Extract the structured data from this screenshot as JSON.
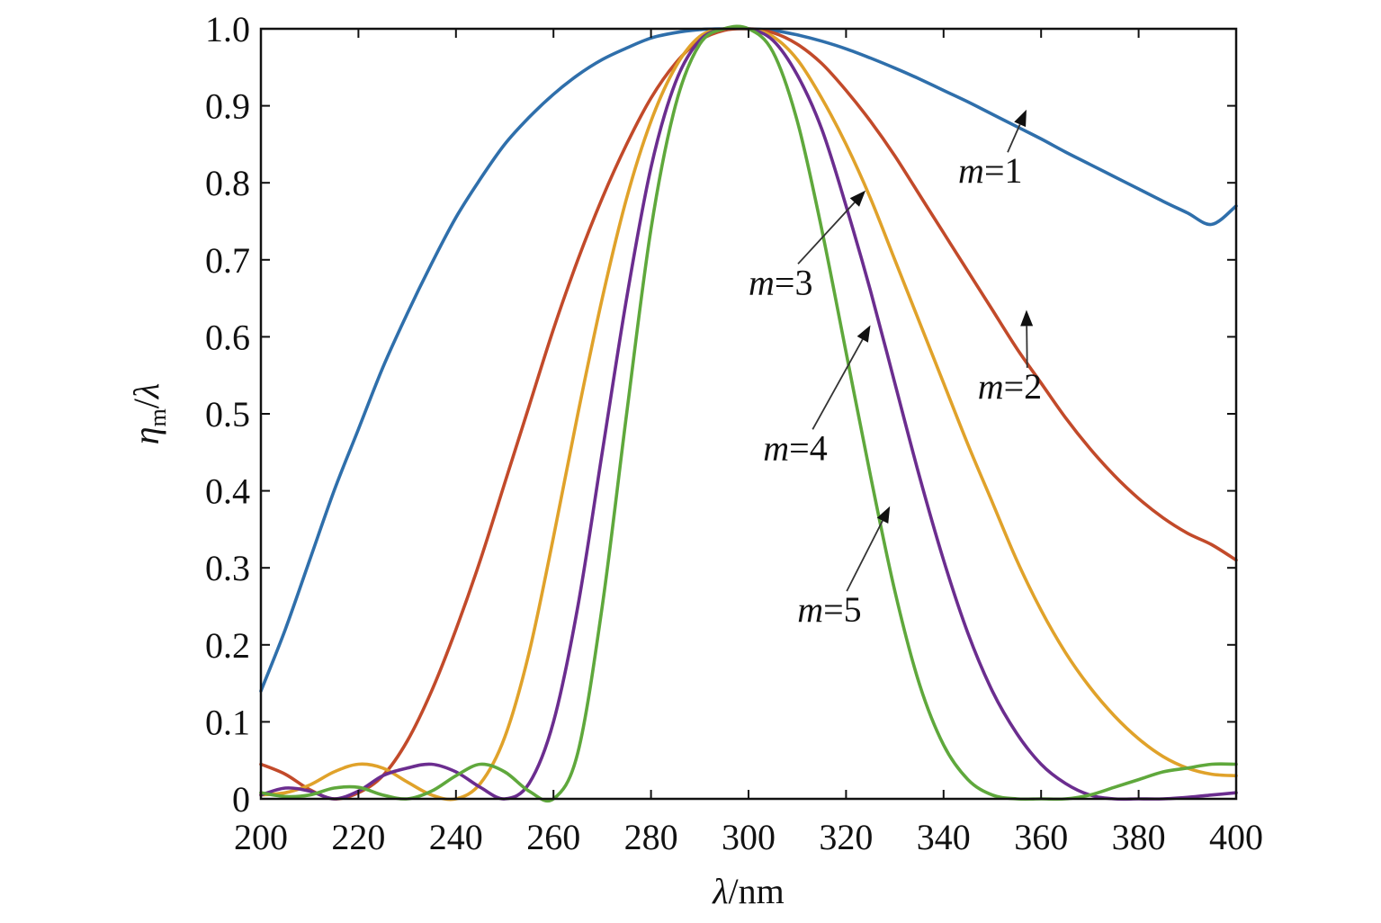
{
  "chart_data": {
    "type": "line",
    "title": "",
    "xlabel": {
      "symbol": "λ",
      "unit": "/nm"
    },
    "ylabel": {
      "symbol": "η",
      "sub": "m",
      "rest": "/λ"
    },
    "xlim": [
      200,
      400
    ],
    "ylim": [
      0,
      1.0
    ],
    "x_ticks": [
      "200",
      "220",
      "240",
      "260",
      "280",
      "300",
      "320",
      "340",
      "360",
      "380",
      "400"
    ],
    "y_ticks": [
      "0",
      "0.1",
      "0.2",
      "0.3",
      "0.4",
      "0.5",
      "0.6",
      "0.7",
      "0.8",
      "0.9",
      "1.0"
    ],
    "grid": false,
    "legend": "none",
    "series": [
      {
        "name": "m=1",
        "color": "#2f6fab",
        "x": [
          200,
          205,
          210,
          215,
          220,
          225,
          230,
          235,
          240,
          245,
          250,
          255,
          260,
          265,
          270,
          275,
          280,
          285,
          290,
          295,
          300,
          305,
          310,
          315,
          320,
          325,
          330,
          335,
          340,
          345,
          350,
          355,
          360,
          365,
          370,
          375,
          380,
          385,
          390,
          395,
          400
        ],
        "y": [
          0.14,
          0.22,
          0.31,
          0.4,
          0.48,
          0.56,
          0.63,
          0.695,
          0.755,
          0.805,
          0.85,
          0.885,
          0.915,
          0.94,
          0.96,
          0.975,
          0.988,
          0.995,
          0.999,
          1.0,
          1.0,
          0.998,
          0.992,
          0.984,
          0.974,
          0.962,
          0.949,
          0.935,
          0.92,
          0.905,
          0.889,
          0.873,
          0.857,
          0.84,
          0.824,
          0.808,
          0.792,
          0.776,
          0.761,
          0.746,
          0.77
        ]
      },
      {
        "name": "m=2",
        "color": "#c24a2a",
        "x": [
          200,
          205,
          210,
          215,
          220,
          225,
          230,
          235,
          240,
          245,
          250,
          255,
          260,
          265,
          270,
          275,
          280,
          285,
          290,
          295,
          300,
          305,
          310,
          315,
          320,
          325,
          330,
          335,
          340,
          345,
          350,
          355,
          360,
          365,
          370,
          375,
          380,
          385,
          390,
          395,
          400
        ],
        "y": [
          0.045,
          0.032,
          0.012,
          0.0,
          0.008,
          0.03,
          0.075,
          0.14,
          0.22,
          0.31,
          0.41,
          0.51,
          0.61,
          0.7,
          0.78,
          0.85,
          0.91,
          0.955,
          0.985,
          0.998,
          1.0,
          0.995,
          0.98,
          0.955,
          0.92,
          0.88,
          0.835,
          0.785,
          0.735,
          0.685,
          0.635,
          0.585,
          0.54,
          0.495,
          0.455,
          0.42,
          0.39,
          0.365,
          0.345,
          0.33,
          0.31
        ]
      },
      {
        "name": "m=3",
        "color": "#e0a22a",
        "x": [
          200,
          205,
          210,
          215,
          220,
          225,
          230,
          235,
          240,
          245,
          250,
          255,
          260,
          265,
          270,
          275,
          280,
          285,
          290,
          295,
          300,
          305,
          310,
          315,
          320,
          325,
          330,
          335,
          340,
          345,
          350,
          355,
          360,
          365,
          370,
          375,
          380,
          385,
          390,
          395,
          400
        ],
        "y": [
          0.005,
          0.008,
          0.018,
          0.035,
          0.045,
          0.04,
          0.022,
          0.005,
          0.0,
          0.02,
          0.08,
          0.19,
          0.34,
          0.5,
          0.65,
          0.78,
          0.88,
          0.95,
          0.99,
          1.0,
          1.0,
          0.99,
          0.96,
          0.91,
          0.85,
          0.78,
          0.7,
          0.62,
          0.54,
          0.46,
          0.385,
          0.31,
          0.245,
          0.19,
          0.145,
          0.108,
          0.078,
          0.055,
          0.04,
          0.032,
          0.03
        ]
      },
      {
        "name": "m=4",
        "color": "#6b2d8f",
        "x": [
          200,
          205,
          210,
          215,
          220,
          225,
          230,
          235,
          240,
          245,
          250,
          255,
          260,
          265,
          270,
          275,
          280,
          285,
          290,
          295,
          300,
          305,
          310,
          315,
          320,
          325,
          330,
          335,
          340,
          345,
          350,
          355,
          360,
          365,
          370,
          375,
          380,
          385,
          390,
          395,
          400
        ],
        "y": [
          0.005,
          0.014,
          0.01,
          0.0,
          0.01,
          0.03,
          0.04,
          0.045,
          0.035,
          0.015,
          0.0,
          0.02,
          0.1,
          0.25,
          0.45,
          0.65,
          0.82,
          0.93,
          0.985,
          1.0,
          1.0,
          0.985,
          0.94,
          0.87,
          0.77,
          0.66,
          0.54,
          0.42,
          0.31,
          0.215,
          0.14,
          0.085,
          0.045,
          0.02,
          0.005,
          0.0,
          0.0,
          0.0,
          0.002,
          0.005,
          0.008
        ]
      },
      {
        "name": "m=5",
        "color": "#5fa83c",
        "x": [
          200,
          205,
          210,
          215,
          220,
          225,
          230,
          235,
          240,
          245,
          250,
          255,
          260,
          265,
          270,
          275,
          280,
          285,
          290,
          295,
          300,
          305,
          310,
          315,
          320,
          325,
          330,
          335,
          340,
          345,
          350,
          355,
          360,
          365,
          370,
          375,
          380,
          385,
          390,
          395,
          400
        ],
        "y": [
          0.008,
          0.003,
          0.005,
          0.014,
          0.015,
          0.005,
          0.0,
          0.01,
          0.03,
          0.045,
          0.035,
          0.01,
          0.0,
          0.06,
          0.25,
          0.5,
          0.74,
          0.9,
          0.98,
          1.0,
          1.0,
          0.97,
          0.88,
          0.74,
          0.58,
          0.42,
          0.27,
          0.15,
          0.07,
          0.025,
          0.005,
          0.0,
          0.0,
          0.0,
          0.005,
          0.015,
          0.025,
          0.035,
          0.04,
          0.045,
          0.045
        ]
      }
    ],
    "annotations": [
      {
        "var": "m",
        "rest": "=1",
        "at": [
          343,
          0.8
        ],
        "arrow_to": [
          357,
          0.895
        ]
      },
      {
        "var": "m",
        "rest": "=3",
        "at": [
          300,
          0.655
        ],
        "arrow_to": [
          324,
          0.79
        ]
      },
      {
        "var": "m",
        "rest": "=2",
        "at": [
          347,
          0.52
        ],
        "arrow_to": [
          357,
          0.635
        ]
      },
      {
        "var": "m",
        "rest": "=4",
        "at": [
          303,
          0.44
        ],
        "arrow_to": [
          325,
          0.615
        ]
      },
      {
        "var": "m",
        "rest": "=5",
        "at": [
          310,
          0.23
        ],
        "arrow_to": [
          329,
          0.38
        ]
      }
    ]
  }
}
